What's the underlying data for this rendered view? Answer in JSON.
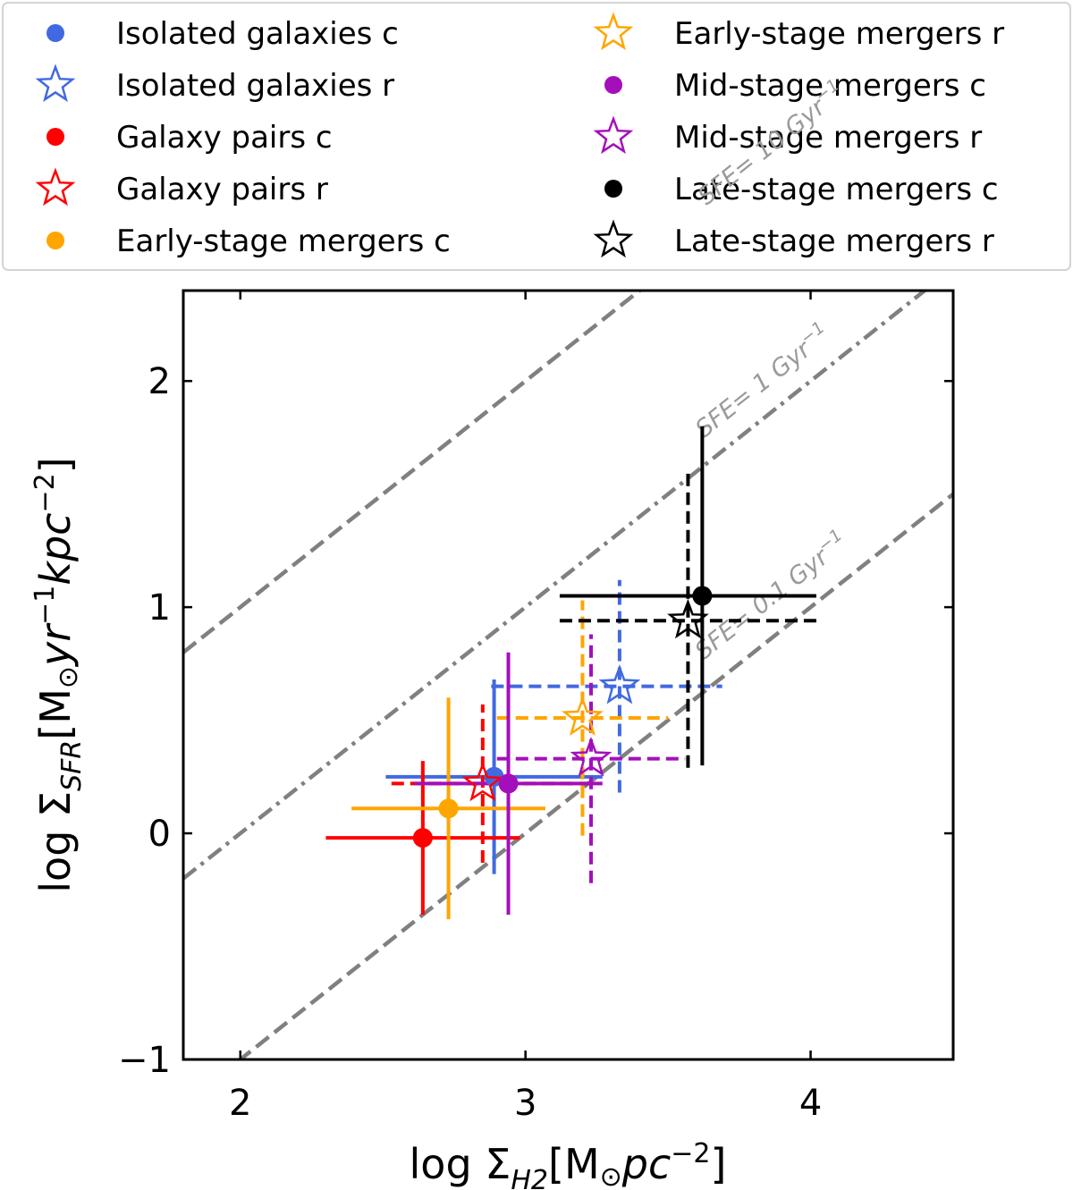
{
  "chart_data": {
    "type": "scatter",
    "xlabel": {
      "prefix": "log Σ",
      "sub": "H2",
      "main": "[M",
      "sun": "⊙",
      "mid": "pc",
      "sup": "−2",
      "suffix": "]"
    },
    "ylabel": {
      "prefix": "log Σ",
      "sub": "SFR",
      "main": "[M",
      "sun": "⊙",
      "mid1": "yr",
      "sup1": "−1",
      "mid2": "kpc",
      "sup2": "−2",
      "suffix": "]"
    },
    "xlim": [
      1.8,
      4.5
    ],
    "ylim": [
      -1,
      2.4
    ],
    "xticks": [
      2,
      3,
      4
    ],
    "xtick_labels": [
      "2",
      "3",
      "4"
    ],
    "yticks": [
      -1,
      0,
      1,
      2
    ],
    "ytick_labels": [
      "−1",
      "0",
      "1",
      "2"
    ],
    "sfe_lines": [
      {
        "offset": -1,
        "style": "dashed",
        "label": "SFE= 10 Gyr",
        "sup": "−1"
      },
      {
        "offset": -2,
        "style": "dashdot",
        "label": "SFE= 1 Gyr",
        "sup": "−1"
      },
      {
        "offset": -3,
        "style": "dashed",
        "label": "SFE= 0.1 Gyr",
        "sup": "−1"
      }
    ],
    "series": [
      {
        "name": "Isolated galaxies c",
        "marker": "circle",
        "color": "#4169e1",
        "x": 2.89,
        "y": 0.25,
        "xerr": [
          0.38,
          0.38
        ],
        "yerr": [
          0.43,
          0.43
        ],
        "line": "solid"
      },
      {
        "name": "Isolated galaxies r",
        "marker": "star",
        "color": "#4169e1",
        "x": 3.33,
        "y": 0.65,
        "xerr": [
          0.45,
          0.36
        ],
        "yerr": [
          0.47,
          0.47
        ],
        "line": "dashed"
      },
      {
        "name": "Galaxy pairs c",
        "marker": "circle",
        "color": "#ff0000",
        "x": 2.64,
        "y": -0.02,
        "xerr": [
          0.34,
          0.34
        ],
        "yerr": [
          0.34,
          0.34
        ],
        "line": "solid"
      },
      {
        "name": "Galaxy pairs r",
        "marker": "star",
        "color": "#ff0000",
        "x": 2.85,
        "y": 0.22,
        "xerr": [
          0.32,
          0.39
        ],
        "yerr": [
          0.35,
          0.35
        ],
        "line": "dashed"
      },
      {
        "name": "Early-stage mergers c",
        "marker": "circle",
        "color": "#ffa500",
        "x": 2.73,
        "y": 0.11,
        "xerr": [
          0.34,
          0.34
        ],
        "yerr": [
          0.49,
          0.49
        ],
        "line": "solid"
      },
      {
        "name": "Early-stage mergers r",
        "marker": "star",
        "color": "#ffa500",
        "x": 3.2,
        "y": 0.51,
        "xerr": [
          0.3,
          0.3
        ],
        "yerr": [
          0.52,
          0.52
        ],
        "line": "dashed"
      },
      {
        "name": "Mid-stage mergers c",
        "marker": "circle",
        "color": "#a40fbb",
        "x": 2.94,
        "y": 0.22,
        "xerr": [
          0.33,
          0.33
        ],
        "yerr": [
          0.58,
          0.58
        ],
        "line": "solid"
      },
      {
        "name": "Mid-stage mergers r",
        "marker": "star",
        "color": "#a40fbb",
        "x": 3.23,
        "y": 0.33,
        "xerr": [
          0.33,
          0.33
        ],
        "yerr": [
          0.55,
          0.55
        ],
        "line": "dashed"
      },
      {
        "name": "Late-stage mergers c",
        "marker": "circle",
        "color": "#000000",
        "x": 3.62,
        "y": 1.05,
        "xerr": [
          0.5,
          0.4
        ],
        "yerr": [
          0.75,
          0.75
        ],
        "line": "solid"
      },
      {
        "name": "Late-stage mergers r",
        "marker": "star",
        "color": "#000000",
        "x": 3.57,
        "y": 0.94,
        "xerr": [
          0.45,
          0.45
        ],
        "yerr": [
          0.65,
          0.65
        ],
        "line": "dashed"
      }
    ],
    "legend": {
      "location": "top",
      "columns": [
        [
          "Isolated galaxies c",
          "Isolated galaxies r",
          "Galaxy pairs c",
          "Galaxy pairs r",
          "Early-stage mergers c"
        ],
        [
          "Early-stage mergers r",
          "Mid-stage mergers c",
          "Mid-stage mergers r",
          "Late-stage mergers c",
          "Late-stage mergers r"
        ]
      ]
    },
    "colors": {
      "sfe_line": "#808080",
      "sfe_label": "#9a9a9a"
    }
  }
}
